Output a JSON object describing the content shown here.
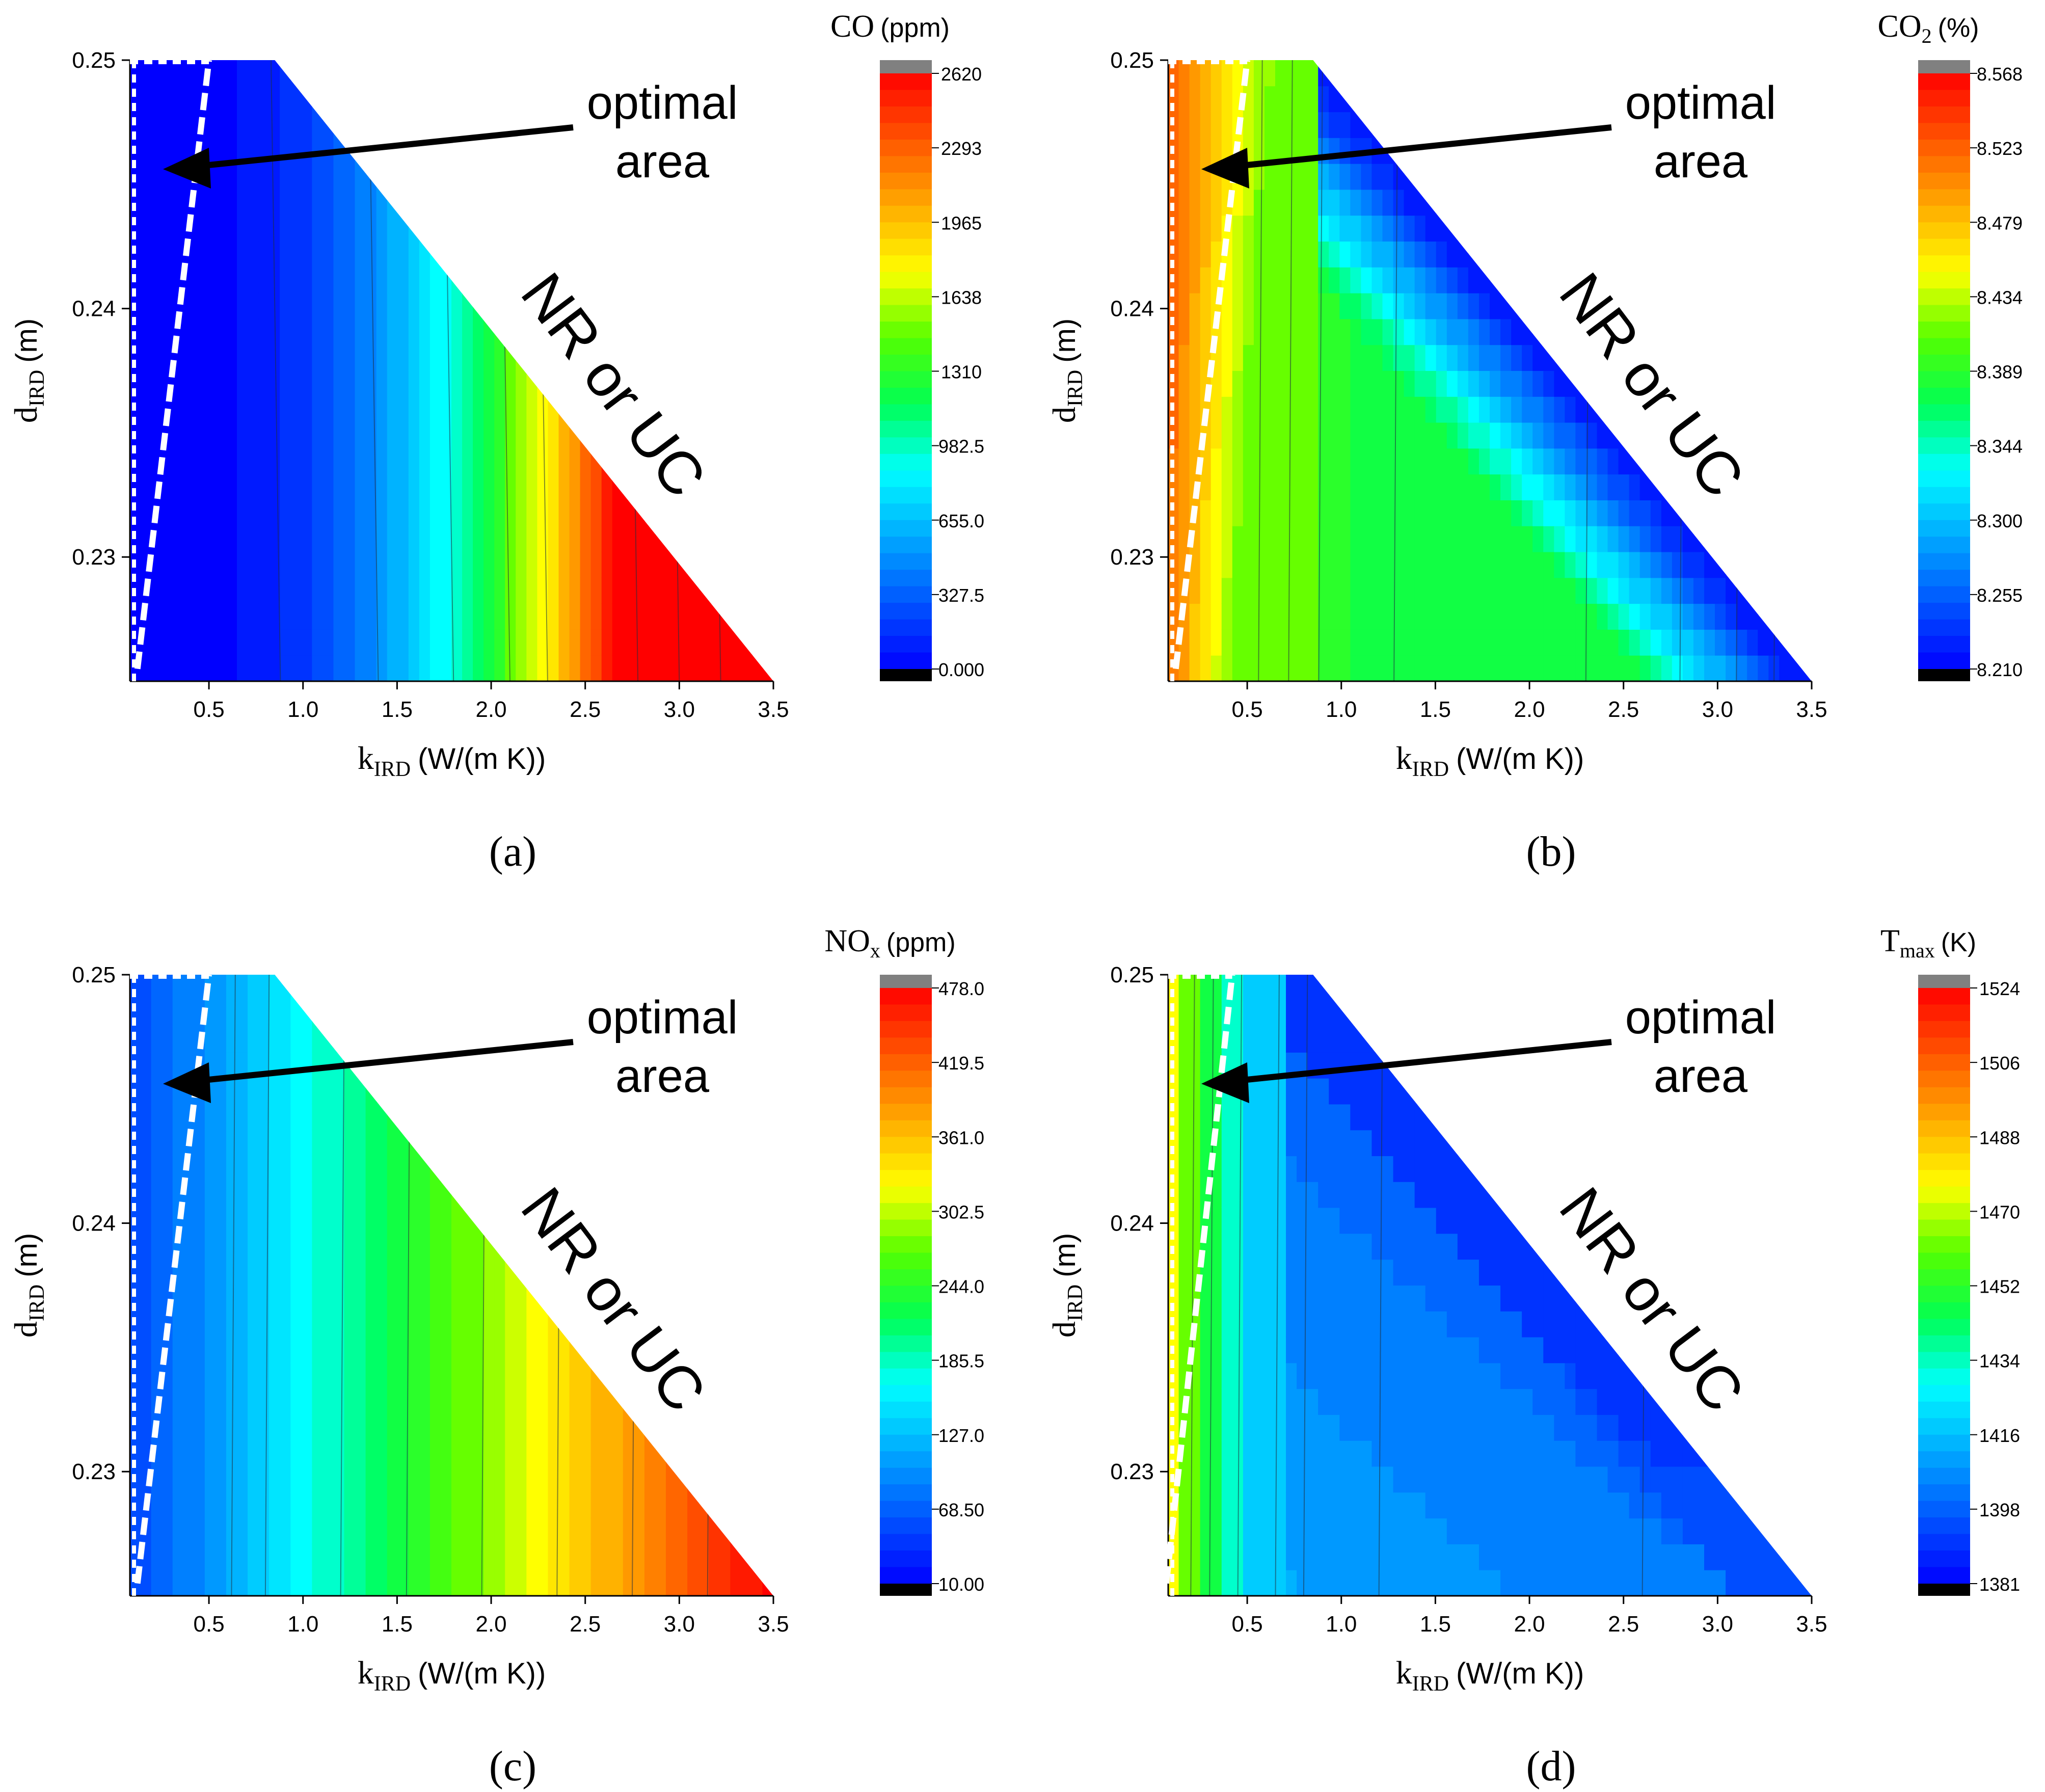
{
  "chart_data": [
    {
      "type": "heatmap",
      "panel_label": "(a)",
      "quantity": "CO",
      "quantity_sub": "",
      "unit": "(ppm)",
      "colorbar_ticks": [
        "2620",
        "2293",
        "1965",
        "1638",
        "1310",
        "982.5",
        "655.0",
        "327.5",
        "0.000"
      ],
      "colorbar_range": [
        0,
        2620
      ],
      "contour_lines": [
        0.88,
        1.4,
        1.8,
        2.1,
        2.3,
        2.78,
        3.0,
        3.22
      ],
      "fields": {
        "mode": "linear",
        "a": -0.12,
        "b": 0.42,
        "gamma": 2.2,
        "cap": 1.0
      },
      "optimal_boundary": [
        [
          0.12,
          0.2255
        ],
        [
          0.5,
          0.25
        ]
      ],
      "annotation": {
        "line1": "optimal",
        "line2": "area",
        "region": "NR or UC"
      }
    },
    {
      "type": "heatmap",
      "panel_label": "(b)",
      "quantity": "CO",
      "quantity_sub": "2",
      "unit": "(%)",
      "colorbar_ticks": [
        "8.568",
        "8.523",
        "8.479",
        "8.434",
        "8.389",
        "8.344",
        "8.300",
        "8.255",
        "8.210"
      ],
      "colorbar_range": [
        8.21,
        8.568
      ],
      "contour_lines": [
        0.56,
        0.72,
        0.88,
        1.28,
        2.3,
        2.8,
        3.1,
        3.3
      ],
      "fields": {
        "mode": "co2"
      },
      "optimal_boundary": [
        [
          0.12,
          0.2255
        ],
        [
          0.5,
          0.25
        ]
      ],
      "annotation": {
        "line1": "optimal",
        "line2": "area",
        "region": "NR or UC"
      }
    },
    {
      "type": "heatmap",
      "panel_label": "(c)",
      "quantity": "NO",
      "quantity_sub": "x",
      "unit": "(ppm)",
      "colorbar_ticks": [
        "478.0",
        "419.5",
        "361.0",
        "302.5",
        "244.0",
        "185.5",
        "127.0",
        "68.50",
        "10.00"
      ],
      "colorbar_range": [
        10,
        478
      ],
      "contour_lines": [
        0.62,
        0.8,
        1.2,
        1.55,
        1.95,
        2.35,
        2.75,
        3.15
      ],
      "fields": {
        "mode": "linear",
        "a": 0.06,
        "b": 0.27,
        "gamma": 1.0,
        "cap": 1.0
      },
      "optimal_boundary": [
        [
          0.12,
          0.2255
        ],
        [
          0.5,
          0.25
        ]
      ],
      "annotation": {
        "line1": "optimal",
        "line2": "area",
        "region": "NR or UC"
      }
    },
    {
      "type": "heatmap",
      "panel_label": "(d)",
      "quantity": "T",
      "quantity_sub": "max",
      "unit": "(K)",
      "colorbar_ticks": [
        "1524",
        "1506",
        "1488",
        "1470",
        "1452",
        "1434",
        "1416",
        "1398",
        "1381"
      ],
      "colorbar_range": [
        1381,
        1524
      ],
      "contour_lines": [
        0.2,
        0.3,
        0.45,
        0.65,
        0.8,
        1.2,
        2.6
      ],
      "fields": {
        "mode": "tmax"
      },
      "optimal_boundary": [
        [
          0.07,
          0.2255
        ],
        [
          0.42,
          0.25
        ]
      ],
      "annotation": {
        "line1": "optimal",
        "line2": "area",
        "region": "NR or UC"
      }
    }
  ],
  "axes": {
    "xlabel_main": "k",
    "xlabel_sub": "IRD",
    "xlabel_unit": "(W/(m K))",
    "ylabel_main": "d",
    "ylabel_sub": "IRD",
    "ylabel_unit": "(m)",
    "xlim": [
      0.08,
      3.5
    ],
    "ylim": [
      0.225,
      0.25
    ],
    "xticks": [
      0.5,
      1.0,
      1.5,
      2.0,
      2.5,
      3.0,
      3.5
    ],
    "xtick_labels": [
      "0.5",
      "1.0",
      "1.5",
      "2.0",
      "2.5",
      "3.0",
      "3.5"
    ],
    "yticks": [
      0.23,
      0.24,
      0.25
    ],
    "ytick_labels": [
      "0.23",
      "0.24",
      "0.25"
    ],
    "valid_region_edge": [
      [
        0.85,
        0.25
      ],
      [
        3.5,
        0.225
      ]
    ]
  },
  "colors": {
    "colormap": [
      "#0000ff",
      "#0055ff",
      "#00aaff",
      "#00ffff",
      "#00ff55",
      "#55ff00",
      "#ffff00",
      "#ffaa00",
      "#ff5500",
      "#ff0000"
    ],
    "over": "#808080",
    "under": "#000000"
  }
}
